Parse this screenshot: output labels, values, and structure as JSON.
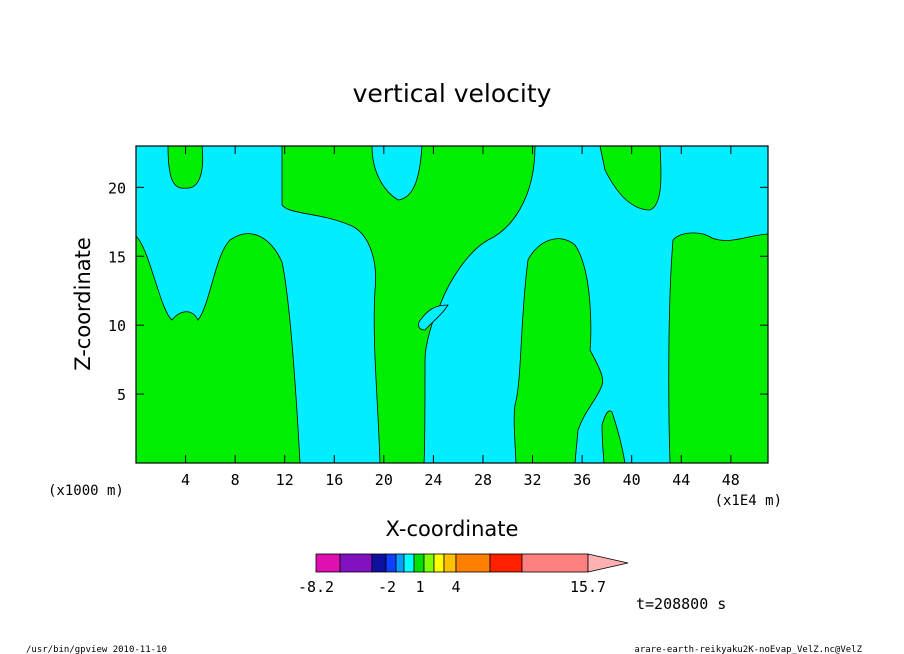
{
  "chart_data": {
    "type": "heatmap",
    "title": "vertical velocity",
    "xlabel": "X-coordinate",
    "ylabel": "Z-coordinate",
    "x_unit_left": "(x1000 m)",
    "x_unit_right": "(x1E4 m)",
    "xlim": [
      0,
      51
    ],
    "ylim": [
      0,
      23
    ],
    "x_ticks": [
      4,
      8,
      12,
      16,
      20,
      24,
      28,
      32,
      36,
      40,
      44,
      48
    ],
    "y_ticks": [
      5,
      10,
      15,
      20
    ],
    "levels": [
      -8.2,
      -2,
      1,
      4,
      15.7
    ],
    "colorbar_labels": [
      "-8.2",
      "-2",
      "1",
      "4",
      "15.7"
    ],
    "colorbar_colors": [
      "#e010b0",
      "#8010c0",
      "#1010a0",
      "#1040ff",
      "#00a0ff",
      "#00ffff",
      "#00e000",
      "#80ff00",
      "#ffff00",
      "#ffc000",
      "#ff8000",
      "#ff2000",
      "#ff8080",
      "#ffb0b0"
    ],
    "fill_colors": {
      "negative": "#00eeff",
      "positive": "#00ee00"
    },
    "time_label": "t=208800 s"
  },
  "footer": {
    "left": "/usr/bin/gpview  2010-11-10",
    "right": "arare-earth-reikyaku2K-noEvap_VelZ.nc@VelZ"
  }
}
